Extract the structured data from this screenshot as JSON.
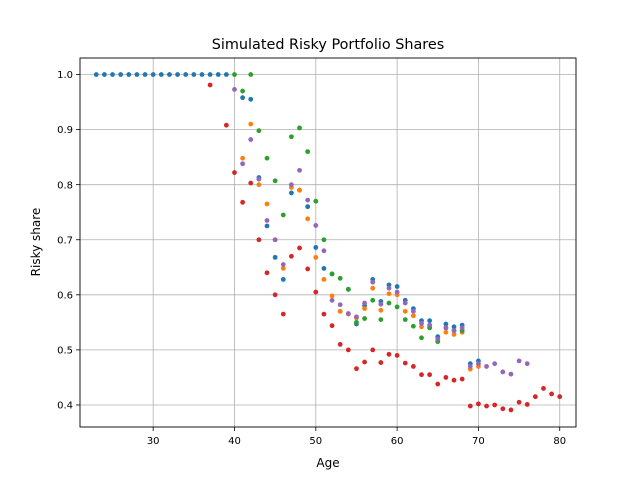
{
  "chart_data": {
    "type": "scatter",
    "title": "Simulated Risky Portfolio Shares",
    "xlabel": "Age",
    "ylabel": "Risky share",
    "xlim": [
      21,
      82
    ],
    "ylim": [
      0.36,
      1.03
    ],
    "xticks": [
      30,
      40,
      50,
      60,
      70,
      80
    ],
    "yticks": [
      0.4,
      0.5,
      0.6,
      0.7,
      0.8,
      0.9,
      1.0
    ],
    "grid": true,
    "colors": [
      "#1f77b4",
      "#ff7f0e",
      "#2ca02c",
      "#d62728",
      "#9467bd"
    ],
    "series": [
      {
        "points": [
          [
            23,
            1.0
          ],
          [
            24,
            1.0
          ],
          [
            25,
            1.0
          ],
          [
            26,
            1.0
          ],
          [
            27,
            1.0
          ],
          [
            28,
            1.0
          ],
          [
            29,
            1.0
          ],
          [
            30,
            1.0
          ],
          [
            31,
            1.0
          ],
          [
            32,
            1.0
          ],
          [
            33,
            1.0
          ],
          [
            34,
            1.0
          ],
          [
            35,
            1.0
          ],
          [
            36,
            1.0
          ],
          [
            37,
            1.0
          ],
          [
            38,
            1.0
          ],
          [
            39,
            1.0
          ],
          [
            41,
            0.958
          ],
          [
            42,
            0.955
          ],
          [
            43,
            0.813
          ],
          [
            44,
            0.725
          ],
          [
            45,
            0.668
          ],
          [
            46,
            0.628
          ],
          [
            47,
            0.785
          ],
          [
            48,
            0.79
          ],
          [
            49,
            0.76
          ],
          [
            50,
            0.686
          ],
          [
            51,
            0.648
          ],
          [
            52,
            0.638
          ],
          [
            53,
            0.57
          ],
          [
            54,
            0.61
          ],
          [
            55,
            0.547
          ],
          [
            56,
            0.58
          ],
          [
            57,
            0.628
          ],
          [
            58,
            0.588
          ],
          [
            59,
            0.618
          ],
          [
            60,
            0.615
          ],
          [
            61,
            0.59
          ],
          [
            62,
            0.575
          ],
          [
            63,
            0.553
          ],
          [
            64,
            0.553
          ],
          [
            65,
            0.524
          ],
          [
            66,
            0.547
          ],
          [
            67,
            0.542
          ],
          [
            68,
            0.545
          ],
          [
            69,
            0.475
          ],
          [
            70,
            0.48
          ]
        ]
      },
      {
        "points": [
          [
            41,
            0.848
          ],
          [
            42,
            0.91
          ],
          [
            43,
            0.8
          ],
          [
            44,
            0.765
          ],
          [
            45,
            0.7
          ],
          [
            46,
            0.648
          ],
          [
            47,
            0.795
          ],
          [
            48,
            0.79
          ],
          [
            49,
            0.738
          ],
          [
            50,
            0.668
          ],
          [
            51,
            0.628
          ],
          [
            52,
            0.598
          ],
          [
            53,
            0.57
          ],
          [
            54,
            0.565
          ],
          [
            55,
            0.558
          ],
          [
            56,
            0.575
          ],
          [
            57,
            0.612
          ],
          [
            58,
            0.572
          ],
          [
            59,
            0.602
          ],
          [
            60,
            0.6
          ],
          [
            61,
            0.57
          ],
          [
            62,
            0.562
          ],
          [
            63,
            0.542
          ],
          [
            64,
            0.542
          ],
          [
            65,
            0.518
          ],
          [
            66,
            0.532
          ],
          [
            67,
            0.528
          ],
          [
            68,
            0.532
          ],
          [
            69,
            0.465
          ],
          [
            70,
            0.47
          ]
        ]
      },
      {
        "points": [
          [
            40,
            1.0
          ],
          [
            41,
            0.97
          ],
          [
            42,
            1.0
          ],
          [
            43,
            0.898
          ],
          [
            44,
            0.848
          ],
          [
            45,
            0.807
          ],
          [
            46,
            0.745
          ],
          [
            47,
            0.887
          ],
          [
            48,
            0.903
          ],
          [
            49,
            0.86
          ],
          [
            50,
            0.77
          ],
          [
            51,
            0.7
          ],
          [
            52,
            0.638
          ],
          [
            53,
            0.63
          ],
          [
            54,
            0.61
          ],
          [
            55,
            0.55
          ],
          [
            56,
            0.557
          ],
          [
            57,
            0.59
          ],
          [
            58,
            0.555
          ],
          [
            59,
            0.585
          ],
          [
            60,
            0.578
          ],
          [
            61,
            0.555
          ],
          [
            62,
            0.543
          ],
          [
            63,
            0.522
          ],
          [
            64,
            0.54
          ],
          [
            65,
            0.515
          ],
          [
            66,
            0.54
          ],
          [
            67,
            0.535
          ],
          [
            68,
            0.535
          ]
        ]
      },
      {
        "points": [
          [
            37,
            0.981
          ],
          [
            39,
            0.908
          ],
          [
            40,
            0.822
          ],
          [
            41,
            0.768
          ],
          [
            42,
            0.803
          ],
          [
            43,
            0.7
          ],
          [
            44,
            0.64
          ],
          [
            45,
            0.6
          ],
          [
            46,
            0.565
          ],
          [
            47,
            0.67
          ],
          [
            48,
            0.685
          ],
          [
            49,
            0.647
          ],
          [
            50,
            0.605
          ],
          [
            51,
            0.565
          ],
          [
            52,
            0.544
          ],
          [
            53,
            0.51
          ],
          [
            54,
            0.5
          ],
          [
            55,
            0.466
          ],
          [
            56,
            0.478
          ],
          [
            57,
            0.5
          ],
          [
            58,
            0.477
          ],
          [
            59,
            0.492
          ],
          [
            60,
            0.49
          ],
          [
            61,
            0.476
          ],
          [
            62,
            0.47
          ],
          [
            63,
            0.455
          ],
          [
            64,
            0.455
          ],
          [
            65,
            0.438
          ],
          [
            66,
            0.45
          ],
          [
            67,
            0.445
          ],
          [
            68,
            0.447
          ],
          [
            69,
            0.398
          ],
          [
            70,
            0.402
          ],
          [
            71,
            0.398
          ],
          [
            72,
            0.4
          ],
          [
            73,
            0.393
          ],
          [
            74,
            0.391
          ],
          [
            75,
            0.405
          ],
          [
            76,
            0.401
          ],
          [
            77,
            0.415
          ],
          [
            78,
            0.43
          ],
          [
            79,
            0.42
          ],
          [
            80,
            0.415
          ]
        ]
      },
      {
        "points": [
          [
            40,
            0.973
          ],
          [
            41,
            0.838
          ],
          [
            42,
            0.882
          ],
          [
            43,
            0.81
          ],
          [
            44,
            0.735
          ],
          [
            45,
            0.7
          ],
          [
            46,
            0.655
          ],
          [
            47,
            0.8
          ],
          [
            48,
            0.826
          ],
          [
            49,
            0.772
          ],
          [
            50,
            0.726
          ],
          [
            51,
            0.68
          ],
          [
            52,
            0.59
          ],
          [
            53,
            0.582
          ],
          [
            54,
            0.566
          ],
          [
            55,
            0.56
          ],
          [
            56,
            0.585
          ],
          [
            57,
            0.623
          ],
          [
            58,
            0.583
          ],
          [
            59,
            0.612
          ],
          [
            60,
            0.605
          ],
          [
            61,
            0.585
          ],
          [
            62,
            0.57
          ],
          [
            63,
            0.548
          ],
          [
            64,
            0.545
          ],
          [
            65,
            0.52
          ],
          [
            66,
            0.54
          ],
          [
            67,
            0.535
          ],
          [
            68,
            0.54
          ],
          [
            69,
            0.47
          ],
          [
            70,
            0.475
          ],
          [
            71,
            0.47
          ],
          [
            72,
            0.475
          ],
          [
            73,
            0.46
          ],
          [
            74,
            0.456
          ],
          [
            75,
            0.48
          ],
          [
            76,
            0.475
          ]
        ]
      }
    ]
  }
}
